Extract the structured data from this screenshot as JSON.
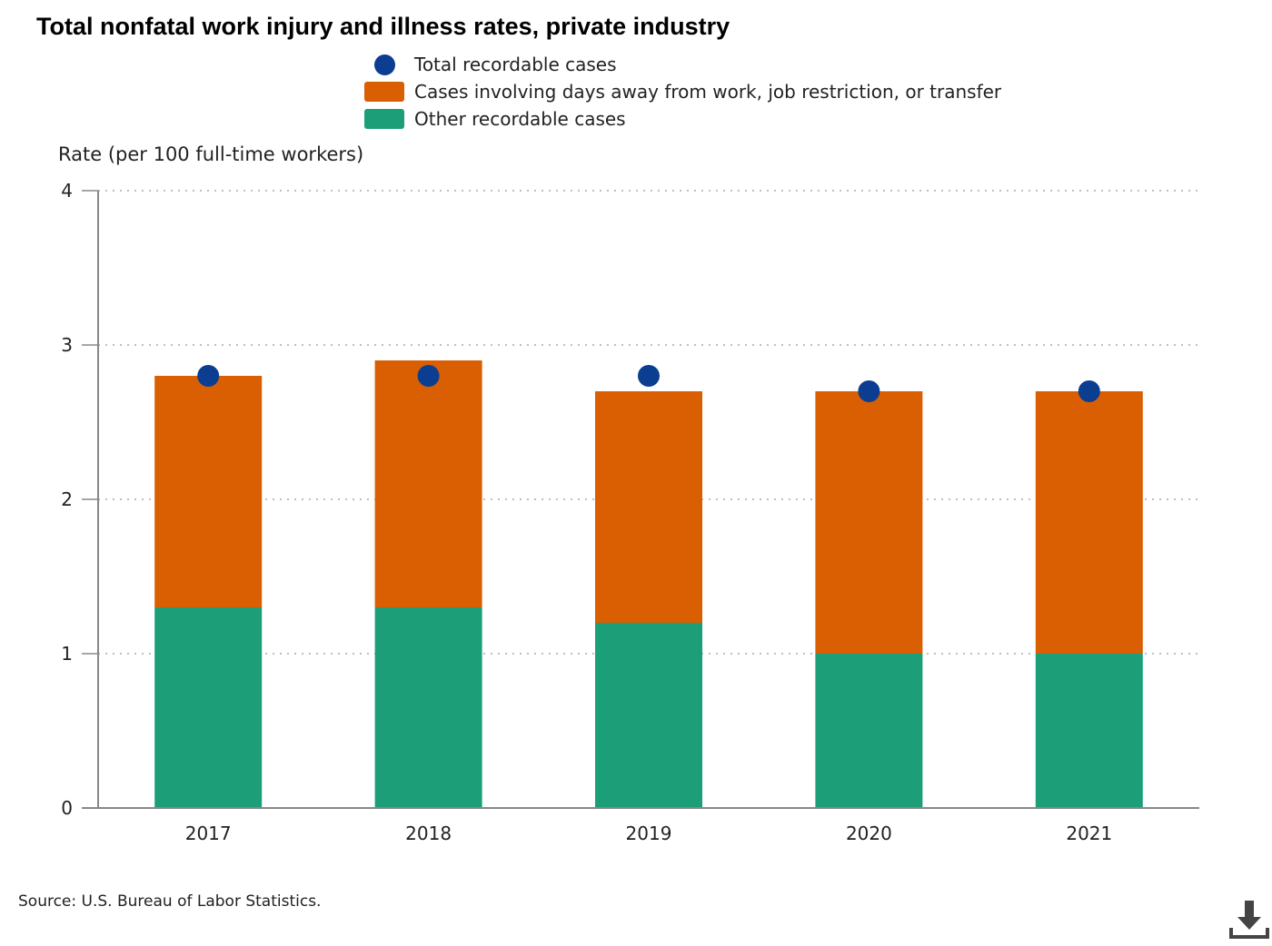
{
  "chart_data": {
    "type": "bar",
    "stacked": true,
    "title": "Total nonfatal work injury and illness rates, private industry",
    "ylabel": "Rate (per 100 full-time workers)",
    "xlabel": "",
    "ylim": [
      0,
      4
    ],
    "yticks": [
      0,
      1,
      2,
      3,
      4
    ],
    "grid": true,
    "categories": [
      "2017",
      "2018",
      "2019",
      "2020",
      "2021"
    ],
    "series": [
      {
        "name": "Other recordable cases",
        "kind": "bar",
        "color": "#1c9e79",
        "values": [
          1.3,
          1.3,
          1.2,
          1.0,
          1.0
        ]
      },
      {
        "name": "Cases involving days away from work, job restriction, or transfer",
        "kind": "bar",
        "color": "#d95f02",
        "values": [
          1.5,
          1.6,
          1.5,
          1.7,
          1.7
        ]
      },
      {
        "name": "Total recordable cases",
        "kind": "point",
        "color": "#0b3d91",
        "values": [
          2.8,
          2.8,
          2.8,
          2.7,
          2.7
        ]
      }
    ],
    "legend": [
      {
        "label": "Total recordable cases",
        "shape": "dot",
        "color": "#0b3d91"
      },
      {
        "label": "Cases involving days away from work, job restriction, or transfer",
        "shape": "rect",
        "color": "#d95f02"
      },
      {
        "label": "Other recordable cases",
        "shape": "rect",
        "color": "#1c9e79"
      }
    ],
    "legend_position": "top-center"
  },
  "source": "Source: U.S. Bureau of Labor Statistics.",
  "download_icon": "download-icon"
}
